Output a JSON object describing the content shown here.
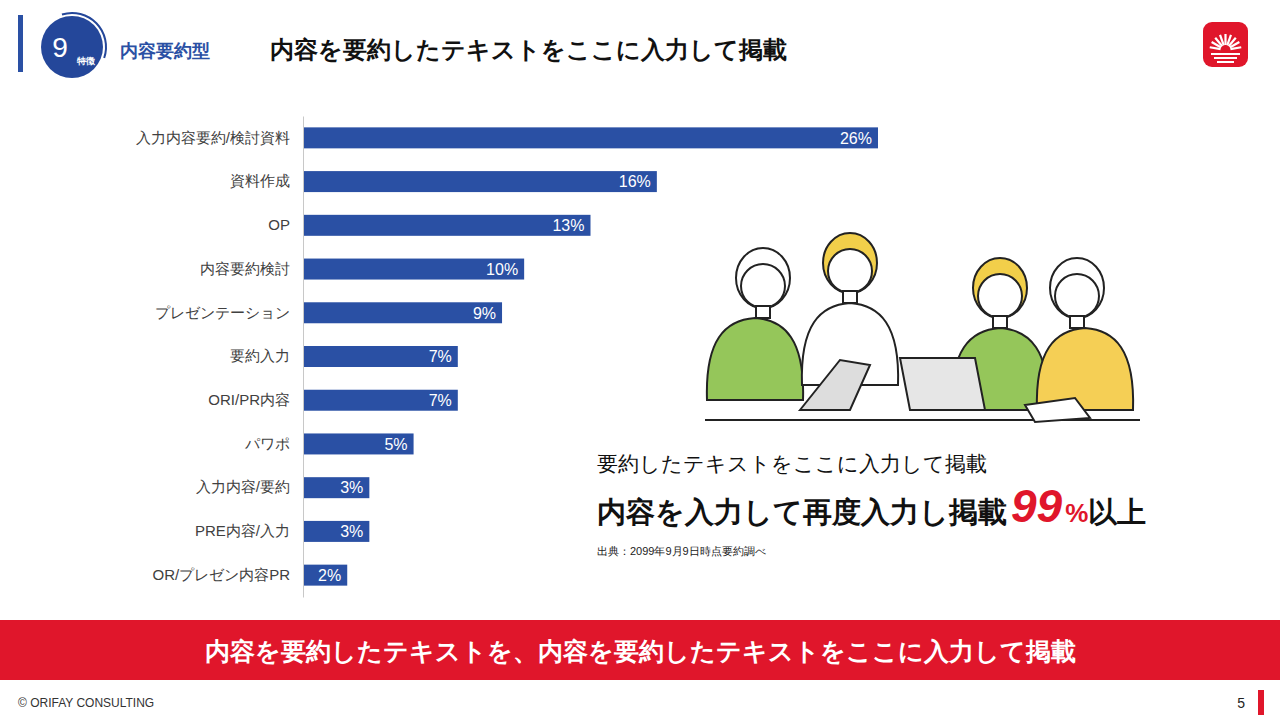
{
  "header": {
    "number": 9,
    "badge": "特徴",
    "category": "内容要約型",
    "title": "内容を要約したテキストをここに入力して掲載"
  },
  "chart_data": {
    "type": "bar",
    "orientation": "horizontal",
    "categories": [
      "入力内容要約/検討資料",
      "資料作成",
      "OP",
      "内容要約検討",
      "プレゼンテーション",
      "要約入力",
      "ORI/PR内容",
      "パワポ",
      "入力内容/要約",
      "PRE内容/入力",
      "OR/プレゼン内容PR"
    ],
    "values": [
      26,
      16,
      13,
      10,
      9,
      7,
      7,
      5,
      3,
      3,
      2
    ],
    "value_labels": [
      "26%",
      "16%",
      "13%",
      "10%",
      "9%",
      "7%",
      "7%",
      "5%",
      "3%",
      "3%",
      "2%"
    ],
    "color": "#2a50a4",
    "xlim": [
      0,
      26
    ],
    "data_labels": true,
    "tick_labels": "y"
  },
  "callout": {
    "lead": "要約したテキストをここに入力して掲載",
    "text": "内容を入力して再度入力し掲載",
    "highlight_value": 99,
    "highlight_unit": "%",
    "highlight_suffix": "以上",
    "source": "出典：2099年9月9日時点要約調べ"
  },
  "banner": "内容を要約したテキストを、内容を要約したテキストをここに入力して掲載",
  "footer": {
    "copyright": "© ORIFAY CONSULTING",
    "page": 5
  }
}
